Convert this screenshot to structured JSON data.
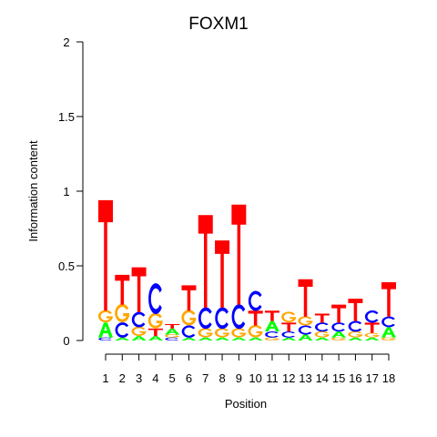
{
  "chart_data": {
    "type": "sequence-logo",
    "title": "FOXM1",
    "xlabel": "Position",
    "ylabel": "Information content",
    "ylim": [
      0,
      2
    ],
    "y_ticks": [
      0,
      0.5,
      1,
      1.5,
      2
    ],
    "y_tick_labels": [
      "0",
      "0.5",
      "1",
      "1.5",
      "2"
    ],
    "positions": [
      "1",
      "2",
      "3",
      "4",
      "5",
      "6",
      "7",
      "8",
      "9",
      "10",
      "11",
      "12",
      "13",
      "14",
      "15",
      "16",
      "17",
      "18"
    ],
    "colors": {
      "A": "#00ff00",
      "C": "#0000ff",
      "G": "#ffa500",
      "T": "#ff0000"
    },
    "stacks": [
      [
        {
          "l": "C",
          "h": 0.02
        },
        {
          "l": "A",
          "h": 0.1
        },
        {
          "l": "G",
          "h": 0.08
        },
        {
          "l": "T",
          "h": 0.74
        }
      ],
      [
        {
          "l": "A",
          "h": 0.02
        },
        {
          "l": "C",
          "h": 0.1
        },
        {
          "l": "G",
          "h": 0.12
        },
        {
          "l": "T",
          "h": 0.2
        }
      ],
      [
        {
          "l": "A",
          "h": 0.03
        },
        {
          "l": "G",
          "h": 0.06
        },
        {
          "l": "C",
          "h": 0.1
        },
        {
          "l": "T",
          "h": 0.3
        }
      ],
      [
        {
          "l": "A",
          "h": 0.03
        },
        {
          "l": "T",
          "h": 0.05
        },
        {
          "l": "G",
          "h": 0.1
        },
        {
          "l": "C",
          "h": 0.2
        }
      ],
      [
        {
          "l": "C",
          "h": 0.02
        },
        {
          "l": "G",
          "h": 0.02
        },
        {
          "l": "A",
          "h": 0.04
        },
        {
          "l": "T",
          "h": 0.03
        }
      ],
      [
        {
          "l": "A",
          "h": 0.02
        },
        {
          "l": "C",
          "h": 0.08
        },
        {
          "l": "G",
          "h": 0.1
        },
        {
          "l": "T",
          "h": 0.17
        }
      ],
      [
        {
          "l": "A",
          "h": 0.02
        },
        {
          "l": "G",
          "h": 0.06
        },
        {
          "l": "C",
          "h": 0.14
        },
        {
          "l": "T",
          "h": 0.62
        }
      ],
      [
        {
          "l": "A",
          "h": 0.02
        },
        {
          "l": "G",
          "h": 0.06
        },
        {
          "l": "C",
          "h": 0.14
        },
        {
          "l": "T",
          "h": 0.45
        }
      ],
      [
        {
          "l": "A",
          "h": 0.02
        },
        {
          "l": "G",
          "h": 0.06
        },
        {
          "l": "C",
          "h": 0.16
        },
        {
          "l": "T",
          "h": 0.67
        }
      ],
      [
        {
          "l": "A",
          "h": 0.02
        },
        {
          "l": "G",
          "h": 0.08
        },
        {
          "l": "T",
          "h": 0.1
        },
        {
          "l": "C",
          "h": 0.13
        }
      ],
      [
        {
          "l": "G",
          "h": 0.02
        },
        {
          "l": "C",
          "h": 0.04
        },
        {
          "l": "A",
          "h": 0.07
        },
        {
          "l": "T",
          "h": 0.07
        }
      ],
      [
        {
          "l": "A",
          "h": 0.02
        },
        {
          "l": "C",
          "h": 0.04
        },
        {
          "l": "T",
          "h": 0.06
        },
        {
          "l": "G",
          "h": 0.07
        }
      ],
      [
        {
          "l": "A",
          "h": 0.04
        },
        {
          "l": "C",
          "h": 0.06
        },
        {
          "l": "G",
          "h": 0.06
        },
        {
          "l": "T",
          "h": 0.25
        }
      ],
      [
        {
          "l": "A",
          "h": 0.02
        },
        {
          "l": "G",
          "h": 0.04
        },
        {
          "l": "C",
          "h": 0.06
        },
        {
          "l": "T",
          "h": 0.06
        }
      ],
      [
        {
          "l": "G",
          "h": 0.02
        },
        {
          "l": "A",
          "h": 0.04
        },
        {
          "l": "C",
          "h": 0.06
        },
        {
          "l": "T",
          "h": 0.12
        }
      ],
      [
        {
          "l": "A",
          "h": 0.02
        },
        {
          "l": "G",
          "h": 0.04
        },
        {
          "l": "C",
          "h": 0.07
        },
        {
          "l": "T",
          "h": 0.15
        }
      ],
      [
        {
          "l": "A",
          "h": 0.02
        },
        {
          "l": "G",
          "h": 0.03
        },
        {
          "l": "T",
          "h": 0.07
        },
        {
          "l": "C",
          "h": 0.08
        }
      ],
      [
        {
          "l": "G",
          "h": 0.02
        },
        {
          "l": "A",
          "h": 0.07
        },
        {
          "l": "C",
          "h": 0.07
        },
        {
          "l": "T",
          "h": 0.23
        }
      ]
    ]
  }
}
